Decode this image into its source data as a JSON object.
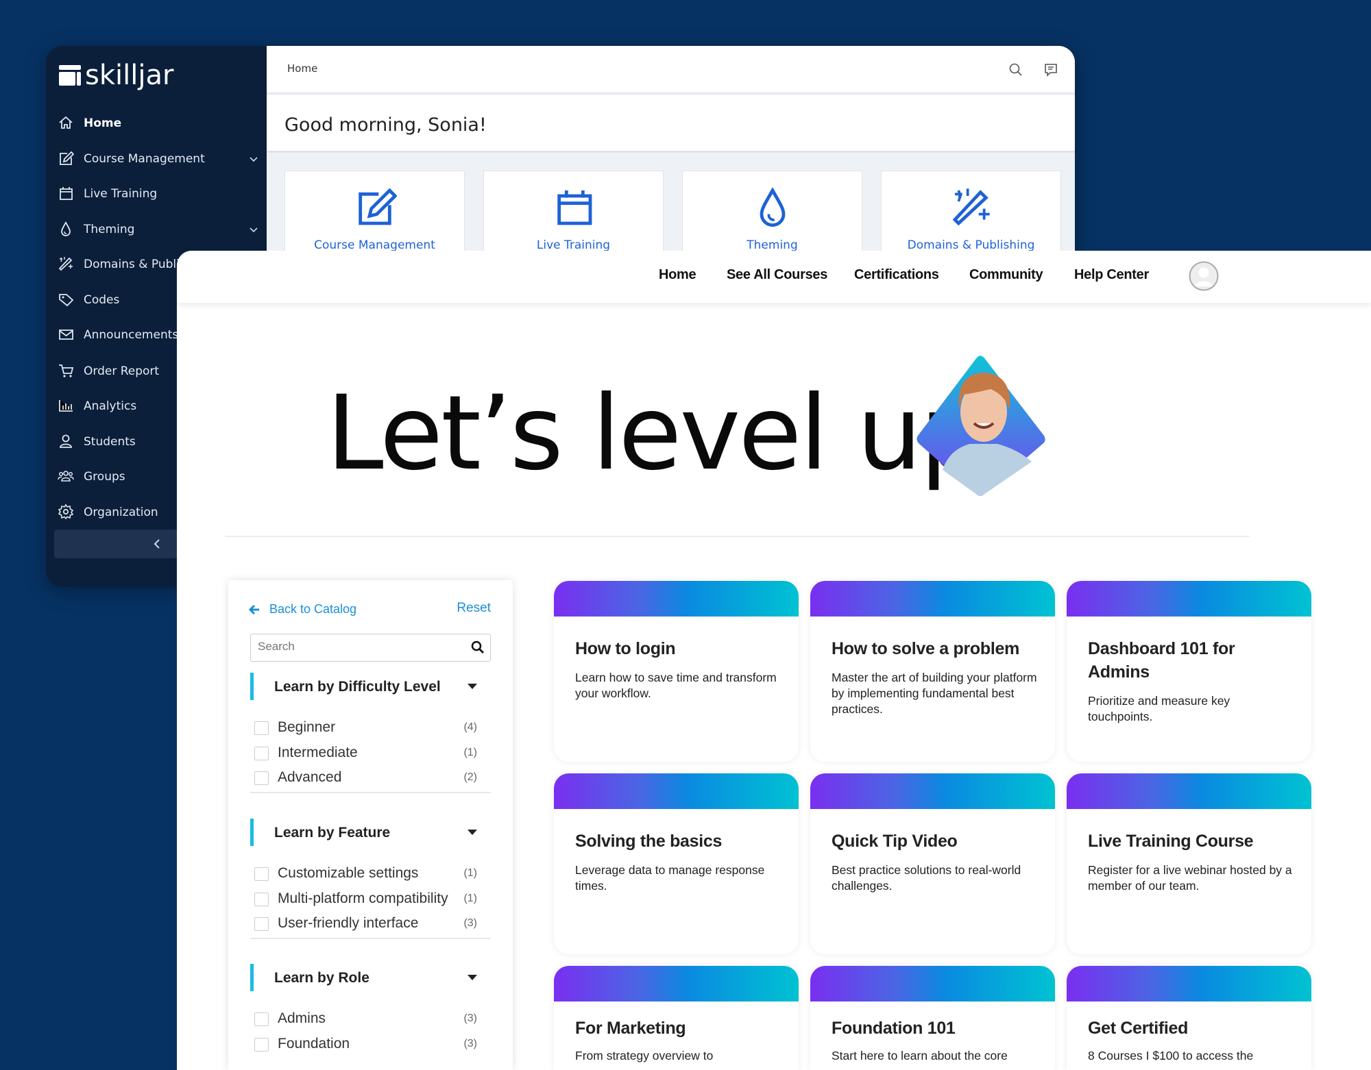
{
  "admin": {
    "logo": "skilljar",
    "sidebar": {
      "items": [
        {
          "label": "Home",
          "icon": "home-icon",
          "active": true
        },
        {
          "label": "Course Management",
          "icon": "edit-icon",
          "expandable": true
        },
        {
          "label": "Live Training",
          "icon": "calendar-icon"
        },
        {
          "label": "Theming",
          "icon": "drop-icon",
          "expandable": true
        },
        {
          "label": "Domains & Publishing",
          "icon": "magic-wand-icon",
          "expandable": true
        },
        {
          "label": "Codes",
          "icon": "tag-icon"
        },
        {
          "label": "Announcements",
          "icon": "mail-icon"
        },
        {
          "label": "Order Report",
          "icon": "cart-icon"
        },
        {
          "label": "Analytics",
          "icon": "bar-chart-icon"
        },
        {
          "label": "Students",
          "icon": "user-icon"
        },
        {
          "label": "Groups",
          "icon": "users-icon"
        },
        {
          "label": "Organization",
          "icon": "gear-icon"
        }
      ]
    },
    "breadcrumb": "Home",
    "greeting": "Good morning, Sonia!",
    "tiles": [
      {
        "label": "Course Management",
        "icon": "edit-icon"
      },
      {
        "label": "Live Training",
        "icon": "calendar-icon"
      },
      {
        "label": "Theming",
        "icon": "drop-icon"
      },
      {
        "label": "Domains & Publishing",
        "icon": "magic-wand-icon"
      }
    ],
    "accent": "#1d62d6"
  },
  "catalog": {
    "nav": [
      "Home",
      "See All Courses",
      "Certifications",
      "Community",
      "Help Center"
    ],
    "hero_title": "Let’s level up.",
    "filter": {
      "back_label": "Back to Catalog",
      "reset_label": "Reset",
      "search_placeholder": "Search",
      "groups": [
        {
          "title": "Learn by Difficulty Level",
          "items": [
            {
              "label": "Beginner",
              "count": "(4)"
            },
            {
              "label": "Intermediate",
              "count": "(1)"
            },
            {
              "label": "Advanced",
              "count": "(2)"
            }
          ]
        },
        {
          "title": "Learn by Feature",
          "items": [
            {
              "label": "Customizable settings",
              "count": "(1)"
            },
            {
              "label": "Multi-platform compatibility",
              "count": "(1)"
            },
            {
              "label": "User-friendly interface",
              "count": "(3)"
            }
          ]
        },
        {
          "title": "Learn by Role",
          "items": [
            {
              "label": "Admins",
              "count": "(3)"
            },
            {
              "label": "Foundation",
              "count": "(3)"
            }
          ]
        }
      ]
    },
    "courses": [
      {
        "title": "How to login",
        "description": "Learn how to save time and transform your workflow."
      },
      {
        "title": "How to solve a problem",
        "description": "Master the art of building your platform by implementing fundamental best practices."
      },
      {
        "title": "Dashboard 101 for Admins",
        "description": "Prioritize and measure key touchpoints."
      },
      {
        "title": "Solving the basics",
        "description": "Leverage data to manage response times."
      },
      {
        "title": "Quick Tip Video",
        "description": "Best practice solutions to real-world challenges."
      },
      {
        "title": "Live Training Course",
        "description": "Register for a live webinar hosted by a member of our team."
      },
      {
        "title": "For Marketing",
        "description": "From strategy overview to"
      },
      {
        "title": "Foundation 101",
        "description": "Start here to learn about the core"
      },
      {
        "title": "Get Certified",
        "description": "8 Courses I $100 to access the"
      }
    ],
    "link_color": "#1a8fd8"
  }
}
